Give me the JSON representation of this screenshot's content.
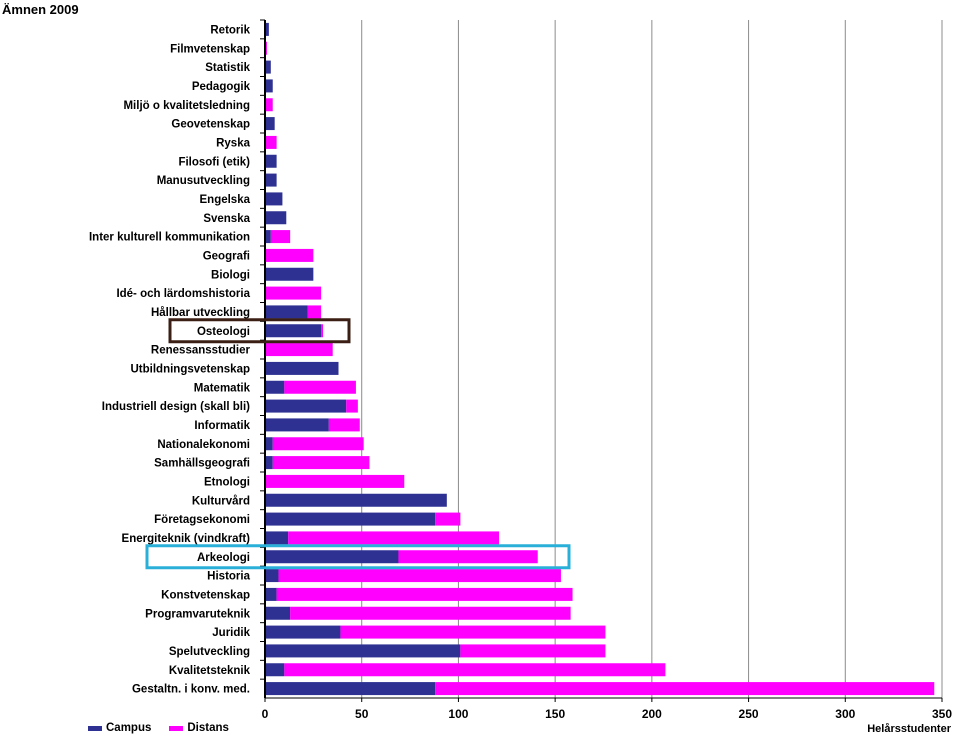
{
  "chart_data": {
    "type": "bar",
    "orientation": "horizontal",
    "stacked": true,
    "title": "Ämnen 2009",
    "xlabel": "Helårsstudenter",
    "xlim": [
      0,
      350
    ],
    "xticks": [
      0,
      50,
      100,
      150,
      200,
      250,
      300,
      350
    ],
    "grid": true,
    "legend_position": "bottom-left",
    "categories": [
      "Retorik",
      "Filmvetenskap",
      "Statistik",
      "Pedagogik",
      "Miljö o kvalitetsledning",
      "Geovetenskap",
      "Ryska",
      "Filosofi (etik)",
      "Manusutveckling",
      "Engelska",
      "Svenska",
      "Inter kulturell kommunikation",
      "Geografi",
      "Biologi",
      "Idé- och lärdomshistoria",
      "Hållbar utveckling",
      "Osteologi",
      "Renessansstudier",
      "Utbildningsvetenskap",
      "Matematik",
      "Industriell design (skall bli)",
      "Informatik",
      "Nationalekonomi",
      "Samhällsgeografi",
      "Etnologi",
      "Kulturvård",
      "Företagsekonomi",
      "Energiteknik (vindkraft)",
      "Arkeologi",
      "Historia",
      "Konstvetenskap",
      "Programvaruteknik",
      "Juridik",
      "Spelutveckling",
      "Kvalitetsteknik",
      "Gestaltn. i konv. med."
    ],
    "series": [
      {
        "name": "Campus",
        "color": "#2e3192",
        "values": [
          2,
          0,
          3,
          4,
          0,
          5,
          0,
          6,
          6,
          9,
          11,
          3,
          0,
          25,
          0,
          22,
          29,
          0,
          38,
          10,
          42,
          33,
          4,
          4,
          0,
          94,
          88,
          12,
          69,
          7,
          6,
          13,
          39,
          101,
          10,
          88
        ]
      },
      {
        "name": "Distans",
        "color": "#ff00ff",
        "values": [
          0,
          1,
          0,
          0,
          4,
          0,
          6,
          0,
          0,
          0,
          0,
          10,
          25,
          0,
          29,
          7,
          1,
          35,
          0,
          37,
          6,
          16,
          47,
          50,
          72,
          0,
          13,
          109,
          72,
          146,
          153,
          145,
          137,
          75,
          197,
          258
        ]
      }
    ],
    "annotations": [
      {
        "type": "highlight-box",
        "category": "Osteologi",
        "color": "#3b1f14"
      },
      {
        "type": "highlight-box",
        "category": "Arkeologi",
        "color": "#2ab0d8"
      }
    ]
  }
}
